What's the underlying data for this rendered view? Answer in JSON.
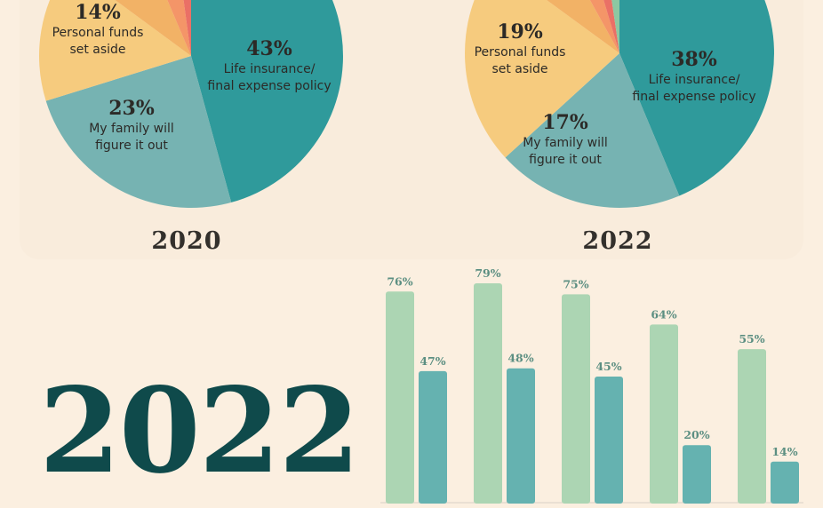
{
  "colors": {
    "background": "#fbefe0",
    "pie_life": "#2f9a9b",
    "pie_family": "#76b3b2",
    "pie_personal": "#f6cb7e",
    "pie_orange1": "#f2b266",
    "pie_orange2": "#f49568",
    "pie_red": "#ea7066",
    "pie_green": "#8cc8a2",
    "bar_light": "#acd5b3",
    "bar_dark": "#65b2b0",
    "big_year": "#0f4a4b",
    "dark_text": "#2c2a27"
  },
  "big_year": "2022",
  "chart_data": [
    {
      "type": "pie",
      "year_label": "2020",
      "slices": [
        {
          "value": 43,
          "pct": "43%",
          "label_lines": [
            "Life insurance/",
            "final expense policy"
          ]
        },
        {
          "value": 23,
          "pct": "23%",
          "label_lines": [
            "My family will",
            "figure it out"
          ]
        },
        {
          "value": 14,
          "pct": "14%",
          "label_lines": [
            "Personal funds",
            "set aside"
          ]
        },
        {
          "value": 8,
          "pct": "",
          "label_lines": []
        },
        {
          "value": 4,
          "pct": "",
          "label_lines": []
        },
        {
          "value": 2,
          "pct": "",
          "label_lines": []
        }
      ]
    },
    {
      "type": "pie",
      "year_label": "2022",
      "slices": [
        {
          "value": 38,
          "pct": "38%",
          "label_lines": [
            "Life insurance/",
            "final expense policy"
          ]
        },
        {
          "value": 17,
          "pct": "17%",
          "label_lines": [
            "My family will",
            "figure it out"
          ]
        },
        {
          "value": 19,
          "pct": "19%",
          "label_lines": [
            "Personal funds",
            "set aside"
          ]
        },
        {
          "value": 6,
          "pct": "",
          "label_lines": []
        },
        {
          "value": 3,
          "pct": "",
          "label_lines": []
        },
        {
          "value": 2,
          "pct": "",
          "label_lines": []
        },
        {
          "value": 2,
          "pct": "",
          "label_lines": []
        }
      ]
    },
    {
      "type": "bar",
      "ylim": [
        0,
        85
      ],
      "series": [
        {
          "values": [
            76,
            79,
            75,
            64,
            55
          ],
          "labels": [
            "76%",
            "79%",
            "75%",
            "64%",
            "55%"
          ]
        },
        {
          "values": [
            47,
            48,
            45,
            20,
            14
          ],
          "labels": [
            "47%",
            "48%",
            "45%",
            "20%",
            "14%"
          ]
        }
      ]
    }
  ]
}
